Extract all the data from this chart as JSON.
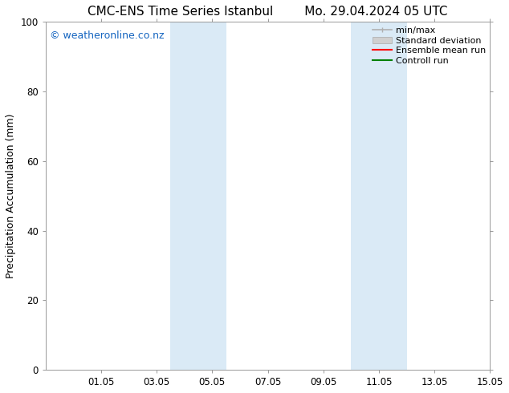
{
  "title_left": "CMC-ENS Time Series Istanbul",
  "title_right": "Mo. 29.04.2024 05 UTC",
  "ylabel": "Precipitation Accumulation (mm)",
  "ylim": [
    0,
    100
  ],
  "yticks": [
    0,
    20,
    40,
    60,
    80,
    100
  ],
  "xlim": [
    0,
    16
  ],
  "xtick_labels": [
    "01.05",
    "03.05",
    "05.05",
    "07.05",
    "09.05",
    "11.05",
    "13.05",
    "15.05"
  ],
  "xtick_positions": [
    2,
    4,
    6,
    8,
    10,
    12,
    14,
    16
  ],
  "shaded_regions": [
    {
      "x_start": 4.5,
      "x_end": 6.5,
      "color": "#daeaf6"
    },
    {
      "x_start": 11.0,
      "x_end": 13.0,
      "color": "#daeaf6"
    }
  ],
  "watermark_text": "© weatheronline.co.nz",
  "watermark_color": "#1565c0",
  "watermark_fontsize": 9,
  "legend_items": [
    {
      "label": "min/max",
      "color": "#b0b0b0",
      "style": "errbar"
    },
    {
      "label": "Standard deviation",
      "color": "#d0d0d0",
      "style": "band"
    },
    {
      "label": "Ensemble mean run",
      "color": "red",
      "style": "line"
    },
    {
      "label": "Controll run",
      "color": "green",
      "style": "line"
    }
  ],
  "background_color": "#ffffff",
  "title_fontsize": 11,
  "axis_label_fontsize": 9,
  "tick_fontsize": 8.5,
  "legend_fontsize": 8
}
